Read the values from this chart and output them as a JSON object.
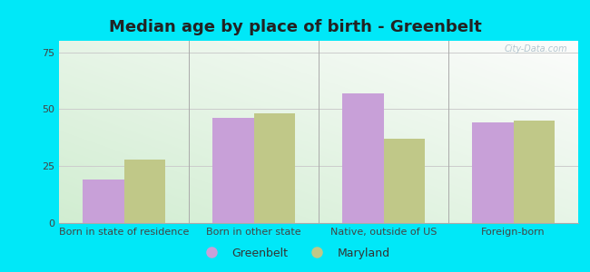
{
  "title": "Median age by place of birth - Greenbelt",
  "categories": [
    "Born in state of residence",
    "Born in other state",
    "Native, outside of US",
    "Foreign-born"
  ],
  "greenbelt_values": [
    19,
    46,
    57,
    44
  ],
  "maryland_values": [
    28,
    48,
    37,
    45
  ],
  "greenbelt_color": "#c8a0d8",
  "maryland_color": "#c0c888",
  "ylim": [
    0,
    80
  ],
  "yticks": [
    0,
    25,
    50,
    75
  ],
  "background_outer": "#00e8f8",
  "grid_color": "#cccccc",
  "title_fontsize": 13,
  "tick_fontsize": 8,
  "legend_fontsize": 9,
  "bar_width": 0.32,
  "watermark_text": "City-Data.com"
}
